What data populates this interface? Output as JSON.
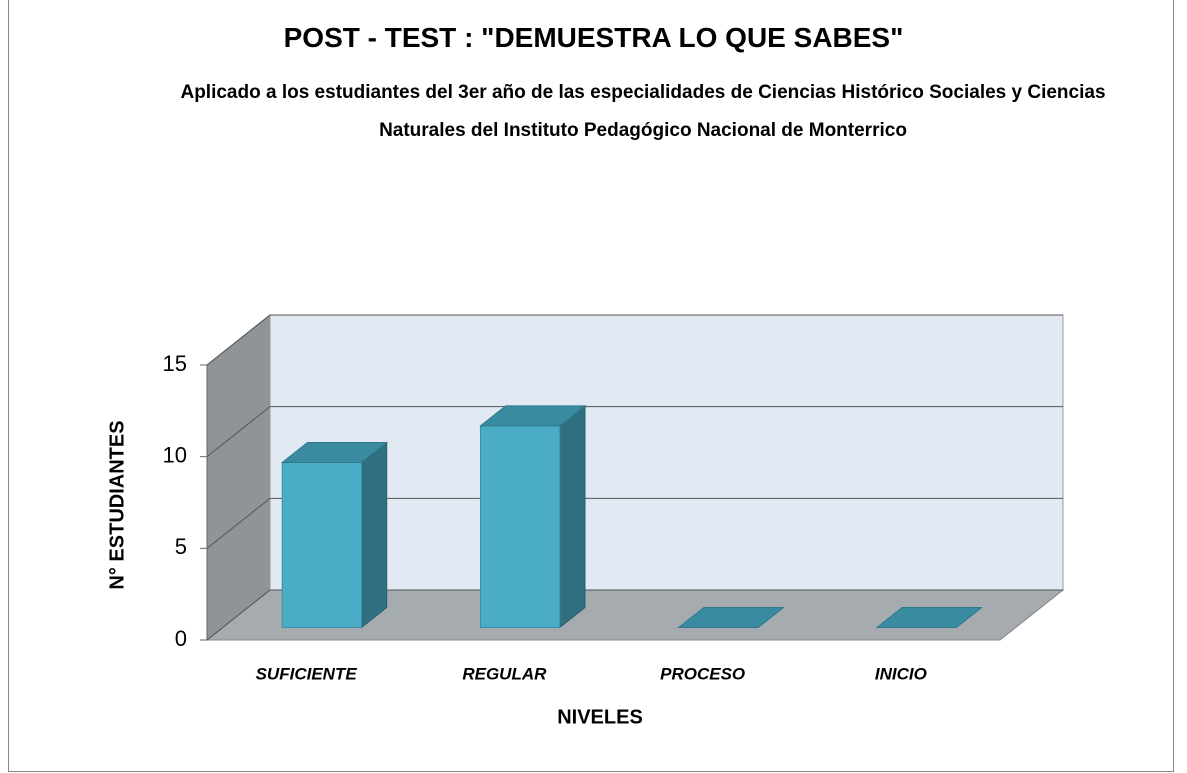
{
  "chart_data": {
    "type": "bar",
    "title": "POST - TEST : \"DEMUESTRA LO QUE SABES\"",
    "subtitle": "Aplicado a los estudiantes del 3er año de las especialidades de Ciencias Histórico Sociales y Ciencias Naturales del Instituto Pedagógico Nacional de Monterrico",
    "categories": [
      "SUFICIENTE",
      "REGULAR",
      "PROCESO",
      "INICIO"
    ],
    "values": [
      9,
      11,
      0,
      0
    ],
    "color": "#4bacc6",
    "ylim": [
      0,
      15
    ],
    "yticks": [
      0,
      5,
      10,
      15
    ],
    "xlabel": "NIVELES",
    "ylabel": "N° ESTUDIANTES",
    "grid": true
  }
}
